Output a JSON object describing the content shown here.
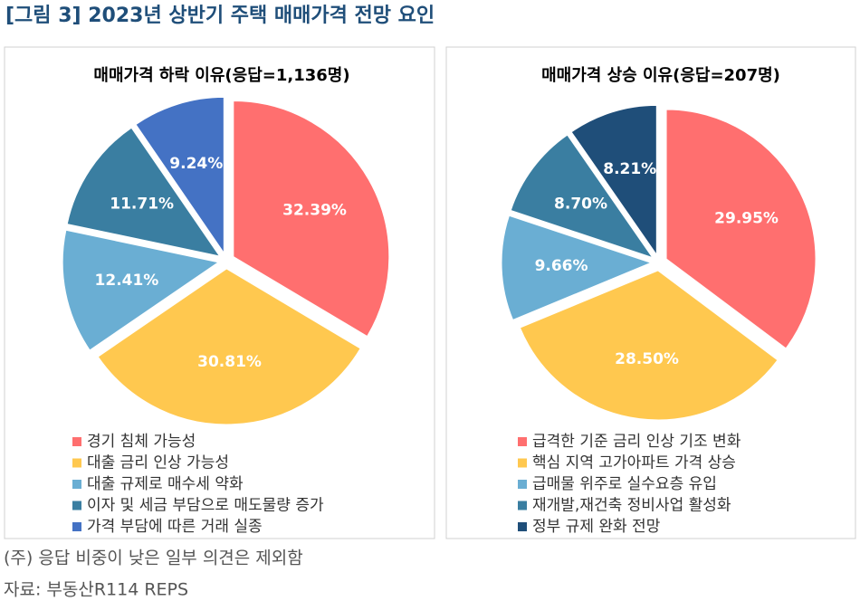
{
  "figure_title": "[그림 3] 2023년 상반기 주택 매매가격 전망 요인",
  "chart_data": [
    {
      "type": "pie",
      "title": "매매가격 하락 이유(응답=1,136명)",
      "categories": [
        "경기 침체 가능성",
        "대출 금리 인상 가능성",
        "대출 규제로 매수세 약화",
        "이자 및 세금 부담으로 매도물량 증가",
        "가격 부담에 따른 거래 실종"
      ],
      "values": [
        32.39,
        30.81,
        12.41,
        11.71,
        9.24
      ],
      "value_labels": [
        "32.39%",
        "30.81%",
        "12.41%",
        "11.71%",
        "9.24%"
      ],
      "colors": [
        "#ff6f6f",
        "#ffc84f",
        "#6aaed3",
        "#3a7ea1",
        "#4472c4"
      ]
    },
    {
      "type": "pie",
      "title": "매매가격 상승 이유(응답=207명)",
      "categories": [
        "급격한 기준 금리 인상 기조 변화",
        "핵심 지역 고가아파트 가격 상승",
        "급매물 위주로 실수요층 유입",
        "재개발,재건축 정비사업 활성화",
        "정부 규제 완화 전망"
      ],
      "values": [
        29.95,
        28.5,
        9.66,
        8.7,
        8.21
      ],
      "value_labels": [
        "29.95%",
        "28.50%",
        "9.66%",
        "8.70%",
        "8.21%"
      ],
      "colors": [
        "#ff6f6f",
        "#ffc84f",
        "#6aaed3",
        "#3a7ea1",
        "#1f4e79"
      ]
    }
  ],
  "note": "(주) 응답 비중이 낮은 일부 의견은 제외함",
  "source": "자료: 부동산R114 REPS"
}
